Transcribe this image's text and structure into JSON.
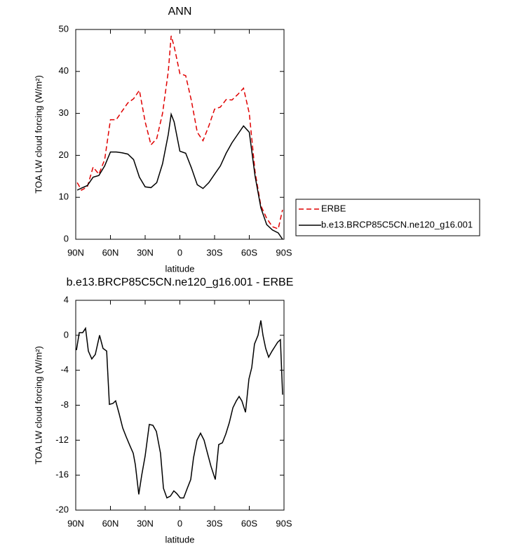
{
  "chart_data": [
    {
      "type": "line",
      "title": "ANN",
      "xlabel": "latitude",
      "ylabel": "TOA LW cloud forcing (W/m²)",
      "x": [
        88.75,
        85,
        80,
        75,
        70,
        65,
        60,
        55,
        50,
        45,
        40,
        35,
        30,
        25,
        20,
        15,
        10,
        7.5,
        5,
        0,
        -5,
        -10,
        -15,
        -20,
        -25,
        -30,
        -35,
        -40,
        -45,
        -50,
        -55,
        -60,
        -65,
        -70,
        -75,
        -80,
        -85,
        -88.75
      ],
      "series": [
        {
          "name": "ERBE",
          "color": "#e00000",
          "dash": true,
          "values": [
            13.5,
            11.7,
            12.5,
            17.2,
            15.5,
            19,
            28.5,
            28.5,
            30.5,
            32.5,
            33.5,
            35.5,
            28,
            22.5,
            24,
            30,
            40,
            48.5,
            46,
            39.5,
            39,
            33,
            25.5,
            23.5,
            27,
            31,
            31.5,
            33.3,
            33.2,
            34.5,
            36,
            30,
            16,
            8,
            5,
            3,
            2.5,
            7
          ]
        },
        {
          "name": "b.e13.BRCP85C5CN.ne120_g16.001",
          "color": "#000000",
          "dash": false,
          "values": [
            11.7,
            12.2,
            12.8,
            14.8,
            15.2,
            17.5,
            20.8,
            20.8,
            20.6,
            20.3,
            19,
            14.8,
            12.5,
            12.3,
            13.5,
            18,
            25,
            29.8,
            28,
            21,
            20.5,
            17,
            13,
            12.1,
            13.5,
            15.5,
            17.5,
            20.5,
            23,
            25,
            27,
            25.5,
            15,
            7.5,
            3.5,
            2.2,
            1.5,
            0
          ]
        }
      ],
      "xlim": [
        90,
        -90
      ],
      "xticks": [
        {
          "value": 90,
          "label": "90N"
        },
        {
          "value": 60,
          "label": "60N"
        },
        {
          "value": 30,
          "label": "30N"
        },
        0,
        {
          "value": -30,
          "label": "30S"
        },
        {
          "value": -60,
          "label": "60S"
        },
        {
          "value": -90,
          "label": "90S"
        }
      ],
      "ylim": [
        0,
        50
      ],
      "yticks": [
        0,
        10,
        20,
        30,
        40,
        50
      ],
      "legend": "right"
    },
    {
      "type": "line",
      "title": "b.e13.BRCP85C5CN.ne120_g16.001 - ERBE",
      "xlabel": "latitude",
      "ylabel": "TOA LW cloud forcing (W/m²)",
      "x": [
        89.4,
        87,
        84,
        81.5,
        79.1,
        76.1,
        73.1,
        69.4,
        66.4,
        63.3,
        60.9,
        57.9,
        55.5,
        52.4,
        49.4,
        46.4,
        43.3,
        40.3,
        38.5,
        35.5,
        33,
        30,
        26.4,
        23.3,
        20.3,
        16.7,
        14.2,
        11.2,
        8.2,
        5.2,
        2.7,
        -0.3,
        -3.3,
        -6.4,
        -9.4,
        -11.8,
        -14.8,
        -17.9,
        -20.9,
        -23.9,
        -26.9,
        -30.6,
        -33.6,
        -36.7,
        -39.7,
        -42.7,
        -45.8,
        -48.8,
        -51.2,
        -53.6,
        -56.7,
        -59.7,
        -62.1,
        -64.5,
        -67.6,
        -70,
        -71.8,
        -74.2,
        -76.7,
        -79.7,
        -82.1,
        -84.5,
        -86.9,
        -88.8
      ],
      "values": [
        -1.7,
        0.3,
        0.3,
        0.8,
        -1.8,
        -2.7,
        -2.2,
        0,
        -1.5,
        -1.8,
        -7.9,
        -7.8,
        -7.5,
        -9,
        -10.6,
        -11.6,
        -12.6,
        -13.5,
        -14.8,
        -18.2,
        -16,
        -13.8,
        -10.2,
        -10.3,
        -11,
        -13.5,
        -17.5,
        -18.6,
        -18.4,
        -17.8,
        -18.1,
        -18.6,
        -18.6,
        -17.5,
        -16.5,
        -14,
        -12,
        -11.2,
        -12,
        -13.5,
        -15,
        -16.5,
        -12.5,
        -12.3,
        -11.3,
        -10,
        -8.3,
        -7.5,
        -7,
        -7.5,
        -8.8,
        -5,
        -3.7,
        -1,
        0,
        1.7,
        0,
        -1.5,
        -2.5,
        -1.8,
        -1.3,
        -0.8,
        -0.5,
        -6.8
      ],
      "color": "#000000",
      "xlim": [
        90,
        -90
      ],
      "xticks": [
        {
          "value": 90,
          "label": "90N"
        },
        {
          "value": 60,
          "label": "60N"
        },
        {
          "value": 30,
          "label": "30N"
        },
        0,
        {
          "value": -30,
          "label": "30S"
        },
        {
          "value": -60,
          "label": "60S"
        },
        {
          "value": -90,
          "label": "90S"
        }
      ],
      "ylim": [
        -20,
        4
      ],
      "yticks": [
        -20,
        -16,
        -12,
        -8,
        -4,
        0,
        4
      ]
    }
  ]
}
